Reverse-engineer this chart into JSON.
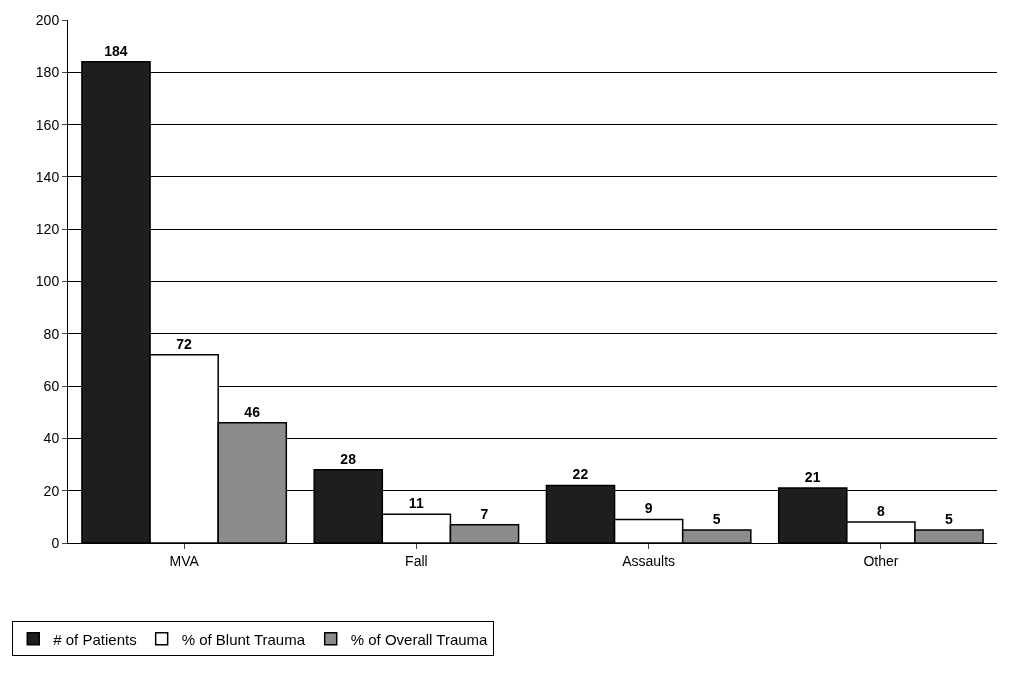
{
  "chart_data": {
    "type": "bar",
    "categories": [
      "MVA",
      "Fall",
      "Assaults",
      "Other"
    ],
    "series": [
      {
        "name": "# of Patients",
        "color": "#1e1e1e",
        "values": [
          184,
          28,
          22,
          21
        ]
      },
      {
        "name": "% of Blunt Trauma",
        "color": "#ffffff",
        "values": [
          72,
          11,
          9,
          8
        ]
      },
      {
        "name": "% of Overall Trauma",
        "color": "#8c8c8c",
        "values": [
          46,
          7,
          5,
          5
        ]
      }
    ],
    "ylim": [
      0,
      200
    ],
    "yticks": [
      0,
      20,
      40,
      60,
      80,
      100,
      120,
      140,
      160,
      180,
      200
    ],
    "grid": "y",
    "legend": "bottom left",
    "data_labels": true
  }
}
